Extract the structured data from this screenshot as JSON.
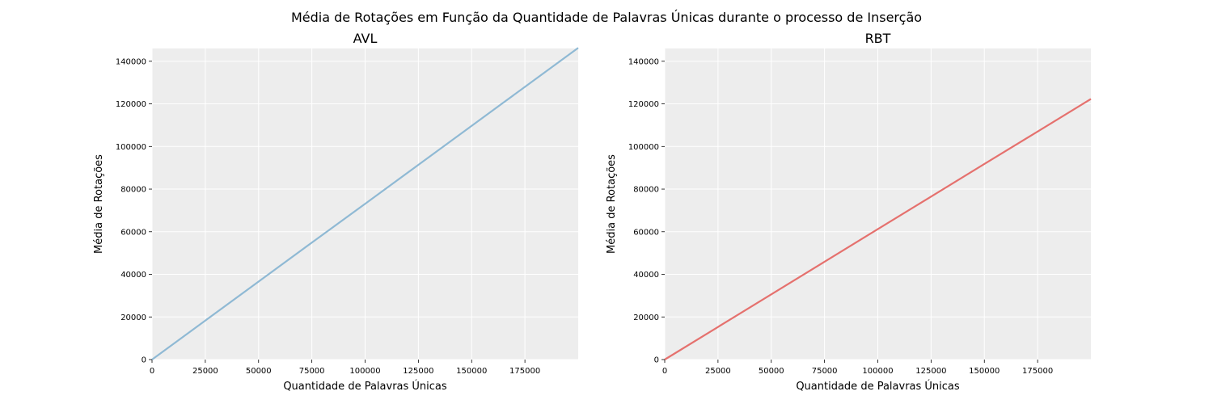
{
  "figure": {
    "suptitle": "Média de Rotações em Função da Quantidade de Palavras Únicas durante o processo de Inserção"
  },
  "style": {
    "panel_background": "#ededed",
    "grid_color": "#ffffff"
  },
  "chart_data": [
    {
      "type": "line",
      "title": "AVL",
      "xlabel": "Quantidade de Palavras Únicas",
      "ylabel": "Média de Rotações",
      "xlim": [
        0,
        200000
      ],
      "ylim": [
        0,
        146000
      ],
      "xticks": [
        0,
        25000,
        50000,
        75000,
        100000,
        125000,
        150000,
        175000
      ],
      "yticks": [
        0,
        20000,
        40000,
        60000,
        80000,
        100000,
        120000,
        140000
      ],
      "grid": true,
      "series": [
        {
          "color": "#8fb9d4",
          "x": [
            0,
            25000,
            50000,
            75000,
            100000,
            125000,
            150000,
            175000,
            200000
          ],
          "y": [
            0,
            18300,
            36600,
            54900,
            73100,
            91400,
            109700,
            128000,
            146300
          ]
        }
      ]
    },
    {
      "type": "line",
      "title": "RBT",
      "xlabel": "Quantidade de Palavras Únicas",
      "ylabel": "Média de Rotações",
      "xlim": [
        0,
        200000
      ],
      "ylim": [
        0,
        146000
      ],
      "xticks": [
        0,
        25000,
        50000,
        75000,
        100000,
        125000,
        150000,
        175000
      ],
      "yticks": [
        0,
        20000,
        40000,
        60000,
        80000,
        100000,
        120000,
        140000
      ],
      "grid": true,
      "series": [
        {
          "color": "#e5716e",
          "x": [
            0,
            25000,
            50000,
            75000,
            100000,
            125000,
            150000,
            175000,
            200000
          ],
          "y": [
            0,
            15300,
            30600,
            45900,
            61200,
            76500,
            91800,
            107000,
            122300
          ]
        }
      ]
    }
  ]
}
